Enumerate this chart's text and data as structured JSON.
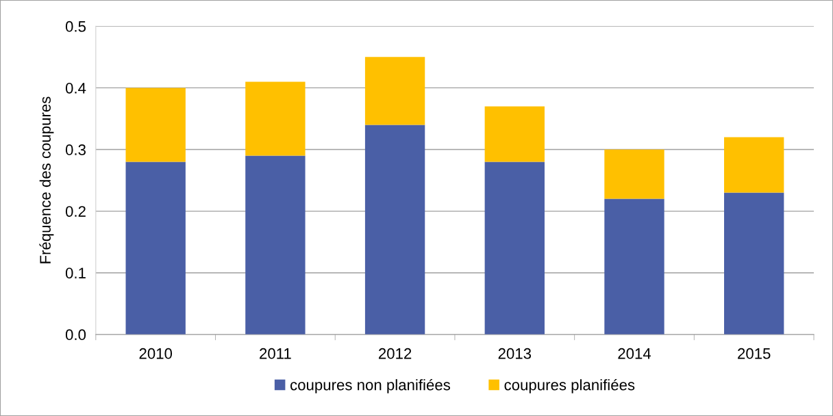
{
  "chart_data": {
    "type": "bar",
    "stacked": true,
    "ylabel": "Fréquence des coupures",
    "categories": [
      "2010",
      "2011",
      "2012",
      "2013",
      "2014",
      "2015"
    ],
    "series": [
      {
        "name": "coupures non planifiées",
        "color": "#4a5fa6",
        "values": [
          0.28,
          0.29,
          0.34,
          0.28,
          0.22,
          0.23
        ]
      },
      {
        "name": "coupures planifiées",
        "color": "#ffc000",
        "values": [
          0.12,
          0.12,
          0.11,
          0.09,
          0.08,
          0.09
        ]
      }
    ],
    "ylim": [
      0,
      0.5
    ],
    "yticks": [
      {
        "value": 0,
        "label": "0.0"
      },
      0.1,
      0.2,
      0.3,
      0.4,
      0.5
    ],
    "grid": "y",
    "legend": "bottom"
  }
}
